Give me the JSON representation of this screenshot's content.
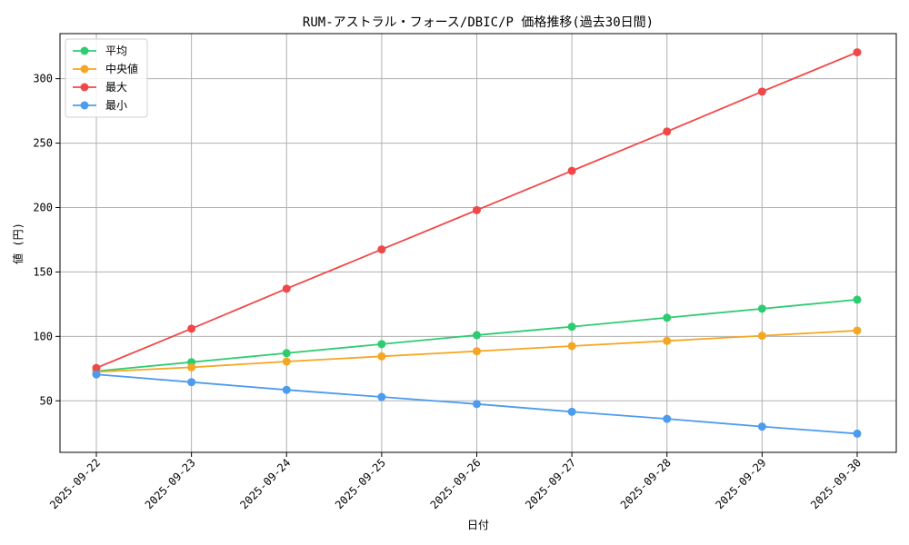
{
  "chart_data": {
    "type": "line",
    "title": "RUM-アストラル・フォース/DBIC/P 価格推移(過去30日間)",
    "xlabel": "日付",
    "ylabel": "値 (円)",
    "categories": [
      "2025-09-22",
      "2025-09-23",
      "2025-09-24",
      "2025-09-25",
      "2025-09-26",
      "2025-09-27",
      "2025-09-28",
      "2025-09-29",
      "2025-09-30"
    ],
    "ylim": [
      10,
      335
    ],
    "yticks": [
      50,
      100,
      150,
      200,
      250,
      300
    ],
    "grid": true,
    "legend_position": "top-left",
    "series": [
      {
        "name": "平均",
        "color": "#2ecc71",
        "values": [
          73,
          80,
          87,
          94,
          101,
          107.5,
          114.5,
          121.5,
          128.5
        ]
      },
      {
        "name": "中央値",
        "color": "#f5a623",
        "values": [
          72.5,
          76,
          80.5,
          84.5,
          88.5,
          92.5,
          96.5,
          100.5,
          104.5
        ]
      },
      {
        "name": "最大",
        "color": "#f04848",
        "values": [
          75.5,
          106,
          137,
          167.5,
          198,
          228.5,
          259,
          290,
          320.5
        ]
      },
      {
        "name": "最小",
        "color": "#4c9bef",
        "values": [
          70.5,
          64.5,
          58.5,
          53,
          47.5,
          41.5,
          36,
          30,
          24.5
        ]
      }
    ]
  }
}
